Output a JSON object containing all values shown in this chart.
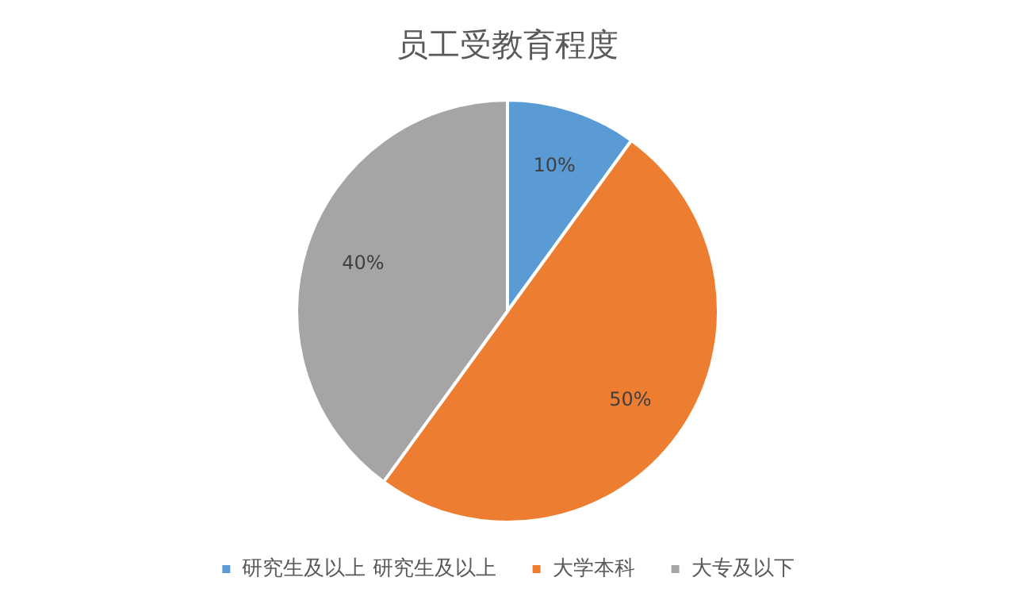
{
  "chart_data": {
    "type": "pie",
    "title": "员工受教育程度",
    "categories": [
      "研究生及以上 研究生及以上",
      "大学本科",
      "大专及以下"
    ],
    "values": [
      10,
      50,
      40
    ],
    "colors": [
      "#5b9bd5",
      "#ed7d31",
      "#a5a5a5"
    ],
    "value_labels": [
      "10%",
      "50%",
      "40%"
    ],
    "legend": "bottom"
  }
}
